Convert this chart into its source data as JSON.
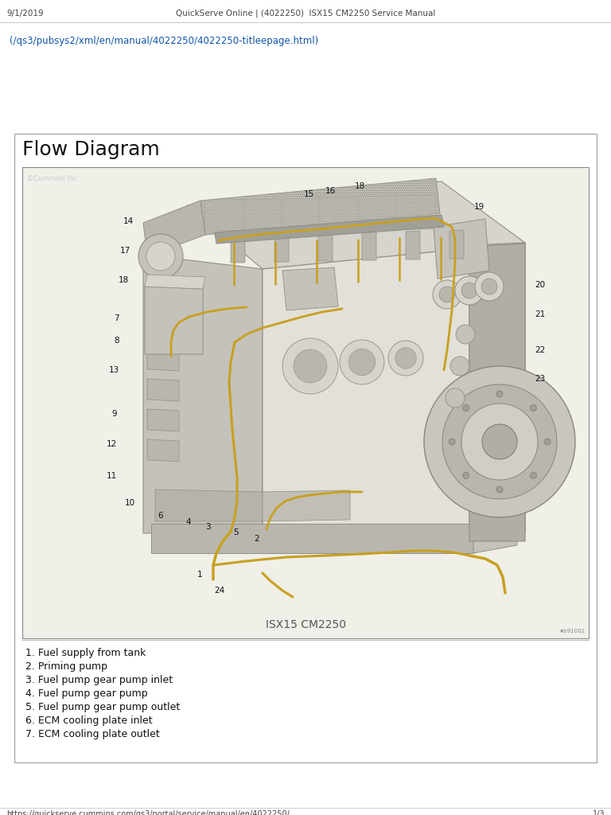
{
  "page_bg": "#ffffff",
  "header_left": "9/1/2019",
  "header_center": "QuickServe Online | (4022250)  ISX15 CM2250 Service Manual",
  "breadcrumb": "(/qs3/pubsys2/xml/en/manual/4022250/4022250-titleepage.html)",
  "section_title": "Flow Diagram",
  "diagram_caption": "ISX15 CM2250",
  "copyright_text": "©Cummins Inc",
  "part_list": [
    "1. Fuel supply from tank",
    "2. Priming pump",
    "3. Fuel pump gear pump inlet",
    "4. Fuel pump gear pump",
    "5. Fuel pump gear pump outlet",
    "6. ECM cooling plate inlet",
    "7. ECM cooling plate outlet"
  ],
  "footer_left": "https://quickserve.cummins.com/qs3/portal/service/manual/en/4022250/",
  "footer_right": "1/3",
  "text_color": "#333333",
  "line_color": "#c8a020",
  "engine_gray1": "#d6d4cc",
  "engine_gray2": "#c4c2ba",
  "engine_gray3": "#b8b6ae",
  "engine_dark": "#909088",
  "engine_light": "#e2e0d8",
  "inner_bg": "#f0efe8"
}
